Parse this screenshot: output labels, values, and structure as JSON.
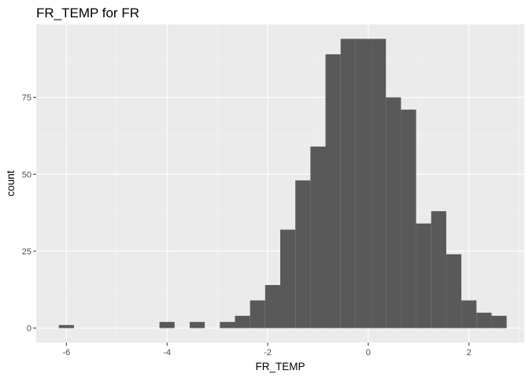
{
  "chart_data": {
    "type": "bar",
    "subtype": "histogram",
    "title": "FR_TEMP  for FR",
    "xlabel": "FR_TEMP",
    "ylabel": "count",
    "xlim": [
      -6.6,
      3.1
    ],
    "ylim": [
      -4.7,
      98.7
    ],
    "x_ticks": [
      -6,
      -4,
      -2,
      0,
      2
    ],
    "x_tick_labels": [
      "-6",
      "-4",
      "-2",
      "0",
      "2"
    ],
    "y_ticks": [
      0,
      25,
      50,
      75
    ],
    "y_tick_labels": [
      "0",
      "25",
      "50",
      "75"
    ],
    "grid": true,
    "legend": "none",
    "bin_width": 0.3,
    "bins": [
      {
        "x0": -6.15,
        "x1": -5.85,
        "count": 1
      },
      {
        "x0": -4.15,
        "x1": -3.85,
        "count": 2
      },
      {
        "x0": -3.55,
        "x1": -3.25,
        "count": 2
      },
      {
        "x0": -2.95,
        "x1": -2.65,
        "count": 2
      },
      {
        "x0": -2.65,
        "x1": -2.35,
        "count": 4
      },
      {
        "x0": -2.35,
        "x1": -2.05,
        "count": 9
      },
      {
        "x0": -2.05,
        "x1": -1.75,
        "count": 14
      },
      {
        "x0": -1.75,
        "x1": -1.45,
        "count": 32
      },
      {
        "x0": -1.45,
        "x1": -1.15,
        "count": 48
      },
      {
        "x0": -1.15,
        "x1": -0.85,
        "count": 59
      },
      {
        "x0": -0.85,
        "x1": -0.55,
        "count": 89
      },
      {
        "x0": -0.55,
        "x1": -0.25,
        "count": 94
      },
      {
        "x0": -0.25,
        "x1": 0.05,
        "count": 94
      },
      {
        "x0": 0.05,
        "x1": 0.35,
        "count": 94
      },
      {
        "x0": 0.35,
        "x1": 0.65,
        "count": 75
      },
      {
        "x0": 0.65,
        "x1": 0.95,
        "count": 71
      },
      {
        "x0": 0.95,
        "x1": 1.25,
        "count": 34
      },
      {
        "x0": 1.25,
        "x1": 1.55,
        "count": 38
      },
      {
        "x0": 1.55,
        "x1": 1.85,
        "count": 24
      },
      {
        "x0": 1.85,
        "x1": 2.15,
        "count": 9
      },
      {
        "x0": 2.15,
        "x1": 2.45,
        "count": 5
      },
      {
        "x0": 2.45,
        "x1": 2.75,
        "count": 4
      }
    ],
    "colors": {
      "bar": "#595959",
      "panel": "#ebebeb",
      "grid_major": "#ffffff",
      "grid_minor": "#f5f5f5",
      "tick_label": "#4d4d4d",
      "text": "#000000"
    }
  }
}
